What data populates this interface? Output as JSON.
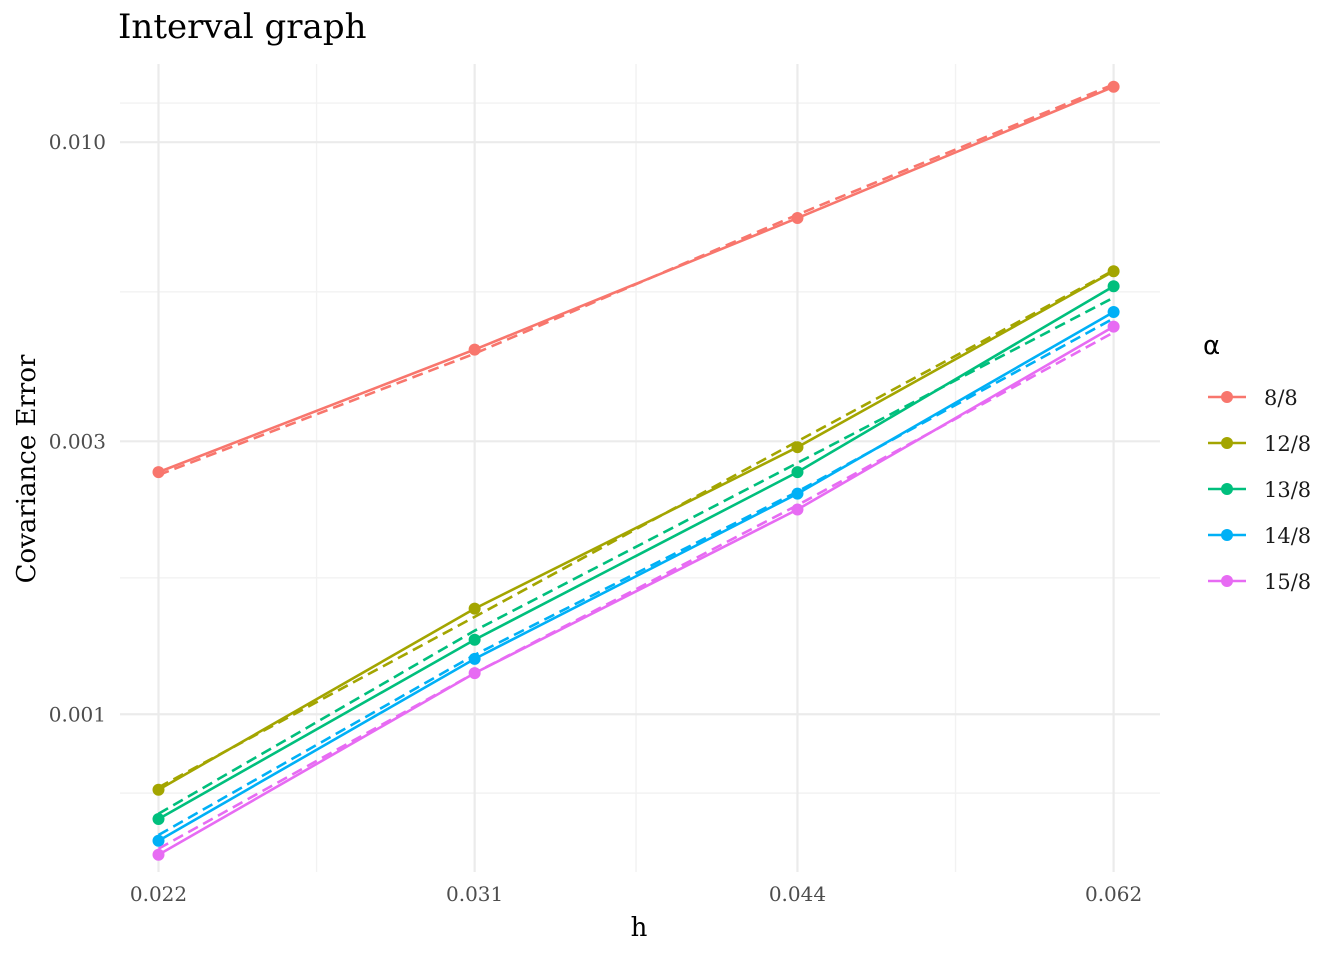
{
  "chart_data": {
    "type": "line",
    "title": "Interval graph",
    "xlabel": "h",
    "ylabel": "Covariance Error",
    "x_scale": "log",
    "y_scale": "log",
    "x": [
      0.022,
      0.031,
      0.044,
      0.062
    ],
    "x_tick_labels": [
      "0.022",
      "0.031",
      "0.044",
      "0.062"
    ],
    "y_ticks": [
      0.001,
      0.003,
      0.01
    ],
    "y_tick_labels": [
      "0.001",
      "0.003",
      "0.010"
    ],
    "xlim": [
      0.0211,
      0.0652
    ],
    "ylim": [
      0.00053,
      0.0137
    ],
    "grid": true,
    "legend_title": "α",
    "legend_position": "right",
    "series": [
      {
        "name": "8/8",
        "color": "#F8766D",
        "values": [
          0.00265,
          0.00434,
          0.00737,
          0.0125
        ],
        "fit": [
          0.00262,
          0.00427,
          0.00747,
          0.01262
        ]
      },
      {
        "name": "12/8",
        "color": "#A3A500",
        "values": [
          0.000738,
          0.00153,
          0.00293,
          0.00595
        ],
        "fit": [
          0.000745,
          0.00148,
          0.003,
          0.00597
        ]
      },
      {
        "name": "13/8",
        "color": "#00BF7D",
        "values": [
          0.000656,
          0.00135,
          0.00265,
          0.0056
        ],
        "fit": [
          0.00067,
          0.0014,
          0.00275,
          0.00535
        ]
      },
      {
        "name": "14/8",
        "color": "#00B0F6",
        "values": [
          0.000601,
          0.00125,
          0.00243,
          0.00505
        ],
        "fit": [
          0.000615,
          0.00127,
          0.00245,
          0.00492
        ]
      },
      {
        "name": "15/8",
        "color": "#E76BF3",
        "values": [
          0.000568,
          0.00118,
          0.00228,
          0.00476
        ],
        "fit": [
          0.000582,
          0.00118,
          0.00232,
          0.00465
        ]
      }
    ]
  }
}
